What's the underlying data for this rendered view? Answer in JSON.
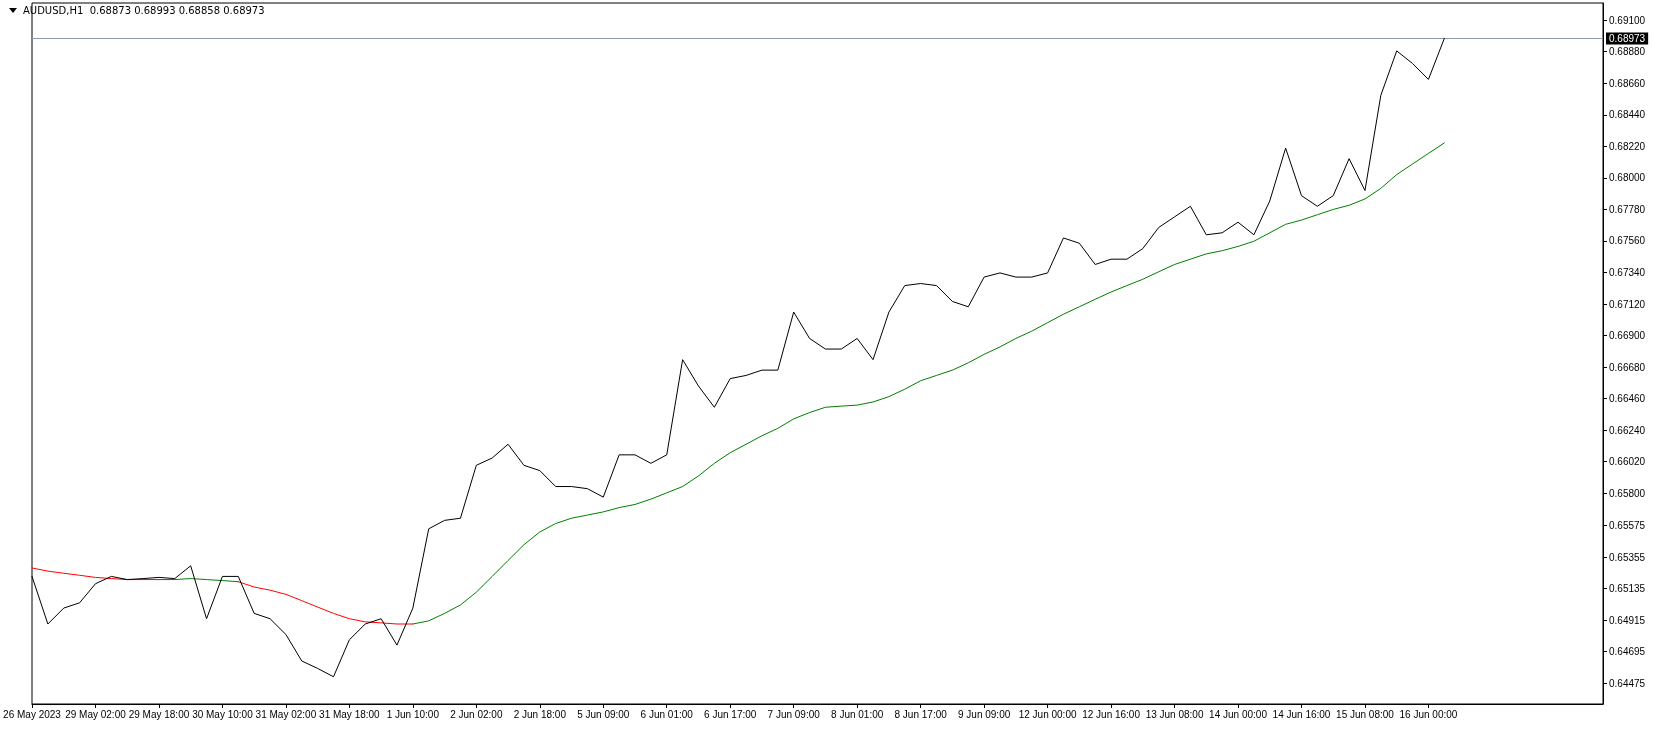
{
  "chart_data": {
    "type": "line",
    "title": "AUDUSD,H1  0.68873 0.68993 0.68858 0.68973",
    "categories": [
      "26 May 2023",
      null,
      null,
      null,
      "29 May 02:00",
      null,
      null,
      null,
      "29 May 18:00",
      null,
      null,
      null,
      "30 May 10:00",
      null,
      null,
      null,
      "31 May 02:00",
      null,
      null,
      null,
      "31 May 18:00",
      null,
      null,
      null,
      "1 Jun 10:00",
      null,
      null,
      null,
      "2 Jun 02:00",
      null,
      null,
      null,
      "2 Jun 18:00",
      null,
      null,
      null,
      "5 Jun 09:00",
      null,
      null,
      null,
      "6 Jun 01:00",
      null,
      null,
      null,
      "6 Jun 17:00",
      null,
      null,
      null,
      "7 Jun 09:00",
      null,
      null,
      null,
      "8 Jun 01:00",
      null,
      null,
      null,
      "8 Jun 17:00",
      null,
      null,
      null,
      "9 Jun 09:00",
      null,
      null,
      null,
      "12 Jun 00:00",
      null,
      null,
      null,
      "12 Jun 16:00",
      null,
      null,
      null,
      "13 Jun 08:00",
      null,
      null,
      null,
      "14 Jun 00:00",
      null,
      null,
      null,
      "14 Jun 16:00",
      null,
      null,
      null,
      "15 Jun 08:00",
      null,
      null,
      null,
      "16 Jun 00:00",
      null
    ],
    "series": [
      {
        "color": "#000000",
        "values": [
          0.6522,
          0.64888,
          0.64999,
          0.65036,
          0.65169,
          0.6522,
          0.65198,
          0.65205,
          0.65213,
          0.65205,
          0.65294,
          0.64925,
          0.6522,
          0.6522,
          0.64962,
          0.64925,
          0.64815,
          0.6463,
          0.64578,
          0.6452,
          0.64778,
          0.64888,
          0.64925,
          0.64741,
          0.64999,
          0.65552,
          0.65611,
          0.65626,
          0.65995,
          0.66046,
          0.66142,
          0.65995,
          0.65958,
          0.65847,
          0.65847,
          0.65832,
          0.65773,
          0.66068,
          0.66068,
          0.66009,
          0.66068,
          0.66732,
          0.66548,
          0.664,
          0.666,
          0.66622,
          0.66659,
          0.66659,
          0.67064,
          0.6688,
          0.66806,
          0.66806,
          0.6688,
          0.66732,
          0.67064,
          0.67249,
          0.67263,
          0.67249,
          0.67138,
          0.67101,
          0.67308,
          0.67337,
          0.67308,
          0.67308,
          0.67337,
          0.67581,
          0.67544,
          0.67396,
          0.67433,
          0.67433,
          0.67507,
          0.67654,
          0.67728,
          0.67802,
          0.67603,
          0.67617,
          0.67691,
          0.67603,
          0.67839,
          0.68208,
          0.67876,
          0.67802,
          0.67876,
          0.68134,
          0.67912,
          0.68576,
          0.68886,
          0.68798,
          0.68687,
          0.68973
        ]
      },
      {
        "color": "#ff0000",
        "values": [
          0.65279,
          0.65257,
          0.65242,
          0.65228,
          0.65213,
          0.65205,
          0.65198,
          0.65198,
          0.65198,
          null,
          null,
          null,
          null,
          0.65183,
          0.65146,
          0.65124,
          0.65095,
          0.65051,
          0.65006,
          0.64962,
          0.64925,
          0.64903,
          0.64896,
          0.64888,
          0.64888,
          null,
          null,
          null,
          null,
          null,
          null,
          null,
          null,
          null,
          null,
          null,
          null,
          null,
          null,
          null,
          null,
          null,
          null,
          null,
          null,
          null,
          null,
          null,
          null,
          null,
          null,
          null,
          null,
          null,
          null,
          null,
          null,
          null,
          null,
          null,
          null,
          null,
          null,
          null,
          null,
          null,
          null,
          null,
          null,
          null,
          null,
          null,
          null,
          null,
          null,
          null,
          null,
          null,
          null,
          null,
          null,
          null,
          null,
          null,
          null,
          null,
          null,
          null,
          null,
          null
        ]
      },
      {
        "color": "#008000",
        "values": [
          null,
          null,
          null,
          null,
          null,
          null,
          null,
          null,
          0.65198,
          0.65198,
          0.65205,
          0.65198,
          0.65191,
          0.65183,
          null,
          null,
          null,
          null,
          null,
          null,
          null,
          null,
          null,
          null,
          0.64888,
          0.6491,
          0.64962,
          0.65021,
          0.6511,
          0.6522,
          0.65331,
          0.65441,
          0.6553,
          0.65589,
          0.65626,
          0.65648,
          0.6567,
          0.657,
          0.65722,
          0.65759,
          0.65803,
          0.65847,
          0.65921,
          0.66009,
          0.66083,
          0.66142,
          0.66201,
          0.66253,
          0.66319,
          0.66363,
          0.664,
          0.66408,
          0.66415,
          0.66437,
          0.66474,
          0.66526,
          0.66585,
          0.66622,
          0.66659,
          0.6671,
          0.66769,
          0.66821,
          0.6688,
          0.66931,
          0.6699,
          0.67049,
          0.67101,
          0.67153,
          0.67204,
          0.67249,
          0.67293,
          0.67345,
          0.67396,
          0.67433,
          0.6747,
          0.67492,
          0.67522,
          0.67558,
          0.67617,
          0.67676,
          0.67706,
          0.67743,
          0.6778,
          0.67809,
          0.67853,
          0.67927,
          0.68023,
          0.68097,
          0.68171,
          0.68244
        ]
      }
    ],
    "ylim": [
      0.6433,
      0.6922
    ],
    "yticks": [
      0.64475,
      0.64695,
      0.64915,
      0.65135,
      0.65355,
      0.65575,
      {
        "value": 0.658,
        "label": "0.65800"
      },
      {
        "value": 0.6602,
        "label": "0.66020"
      },
      {
        "value": 0.6624,
        "label": "0.66240"
      },
      {
        "value": 0.6646,
        "label": "0.66460"
      },
      {
        "value": 0.6668,
        "label": "0.66680"
      },
      {
        "value": 0.669,
        "label": "0.66900"
      },
      {
        "value": 0.6712,
        "label": "0.67120"
      },
      {
        "value": 0.6734,
        "label": "0.67340"
      },
      {
        "value": 0.6756,
        "label": "0.67560"
      },
      {
        "value": 0.6778,
        "label": "0.67780"
      },
      {
        "value": 0.68,
        "label": "0.68000"
      },
      {
        "value": 0.6822,
        "label": "0.68220"
      },
      {
        "value": 0.6844,
        "label": "0.68440"
      },
      {
        "value": 0.6866,
        "label": "0.68660"
      },
      {
        "value": 0.6888,
        "label": "0.68880"
      },
      {
        "value": 0.691,
        "label": "0.69100"
      }
    ],
    "ref_lines": [
      {
        "axis": "y",
        "value": 0.68973,
        "label": "0.68973",
        "color": "#8c9cb0"
      }
    ],
    "grid": false,
    "marker": "none",
    "line_style": "solid"
  }
}
